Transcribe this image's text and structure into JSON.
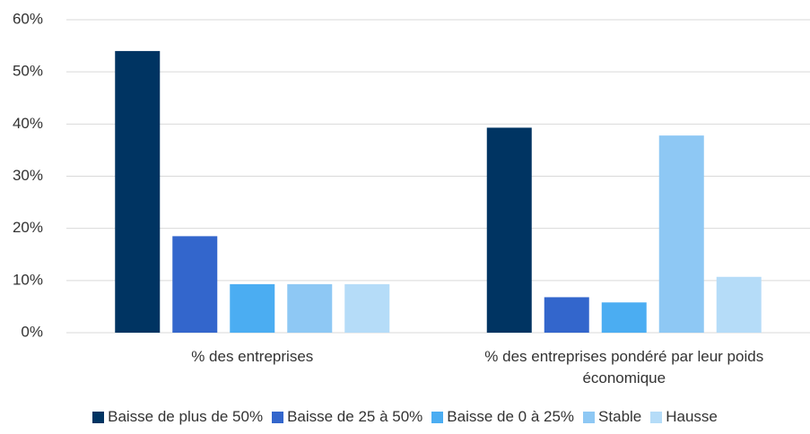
{
  "chart_data": {
    "type": "bar",
    "categories": [
      "% des entreprises",
      "% des entreprises pondéré par leur poids économique"
    ],
    "series": [
      {
        "name": "Baisse de plus de 50%",
        "color": "#003462",
        "values": [
          54,
          39.3
        ]
      },
      {
        "name": "Baisse de 25 à 50%",
        "color": "#3366cc",
        "values": [
          18.5,
          6.8
        ]
      },
      {
        "name": "Baisse de 0 à 25%",
        "color": "#4badf2",
        "values": [
          9.3,
          5.8
        ]
      },
      {
        "name": "Stable",
        "color": "#8ec8f4",
        "values": [
          9.3,
          37.8
        ]
      },
      {
        "name": "Hausse",
        "color": "#b5dcf8",
        "values": [
          9.3,
          10.7
        ]
      }
    ],
    "ylim": [
      0,
      60
    ],
    "yticks": [
      {
        "value": 0,
        "label": "0%"
      },
      {
        "value": 10,
        "label": "10%"
      },
      {
        "value": 20,
        "label": "20%"
      },
      {
        "value": 30,
        "label": "30%"
      },
      {
        "value": 40,
        "label": "40%"
      },
      {
        "value": 50,
        "label": "50%"
      },
      {
        "value": 60,
        "label": "60%"
      }
    ],
    "grid": true,
    "legend": "bottom"
  }
}
